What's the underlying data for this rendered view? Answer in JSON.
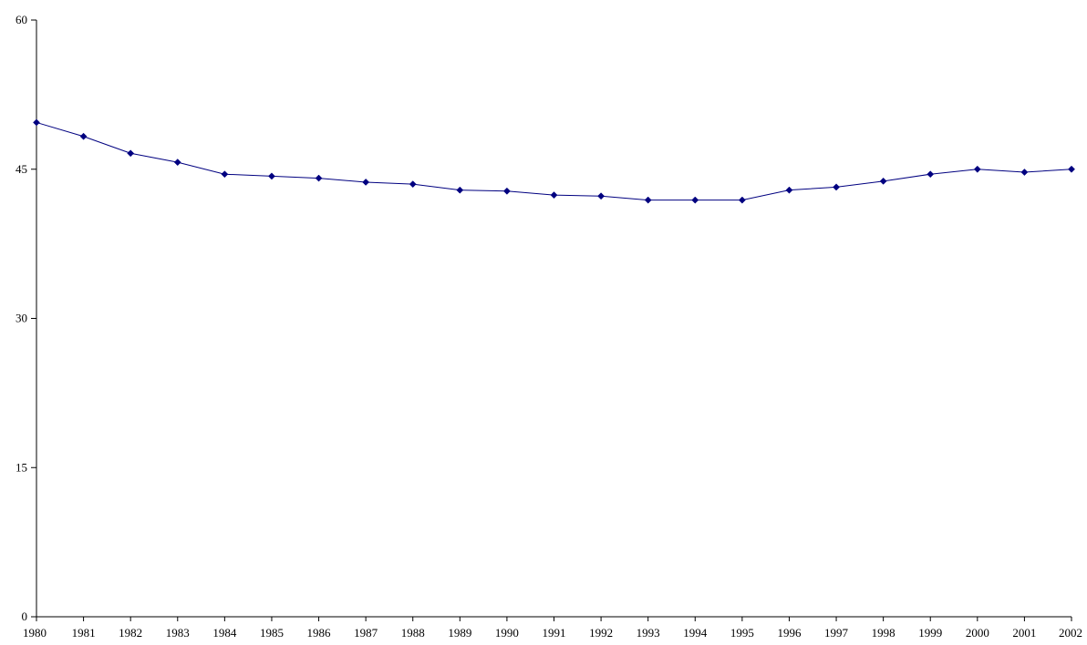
{
  "chart_data": {
    "type": "line",
    "title": "",
    "xlabel": "",
    "ylabel": "",
    "x": [
      "1980",
      "1981",
      "1982",
      "1983",
      "1984",
      "1985",
      "1986",
      "1987",
      "1988",
      "1989",
      "1990",
      "1991",
      "1992",
      "1993",
      "1994",
      "1995",
      "1996",
      "1997",
      "1998",
      "1999",
      "2000",
      "2001",
      "2002"
    ],
    "series": [
      {
        "values": [
          49.7,
          48.3,
          46.6,
          45.7,
          44.5,
          44.3,
          44.1,
          43.7,
          43.5,
          42.9,
          42.8,
          42.4,
          42.3,
          41.9,
          41.9,
          41.9,
          42.9,
          43.2,
          43.8,
          44.5,
          45.0,
          44.7,
          45.0
        ],
        "color": "#000080",
        "marker": "diamond"
      }
    ],
    "ylim": [
      0,
      60
    ],
    "yticks": [
      0,
      15,
      30,
      45,
      60
    ],
    "grid": false,
    "legend": "none"
  }
}
